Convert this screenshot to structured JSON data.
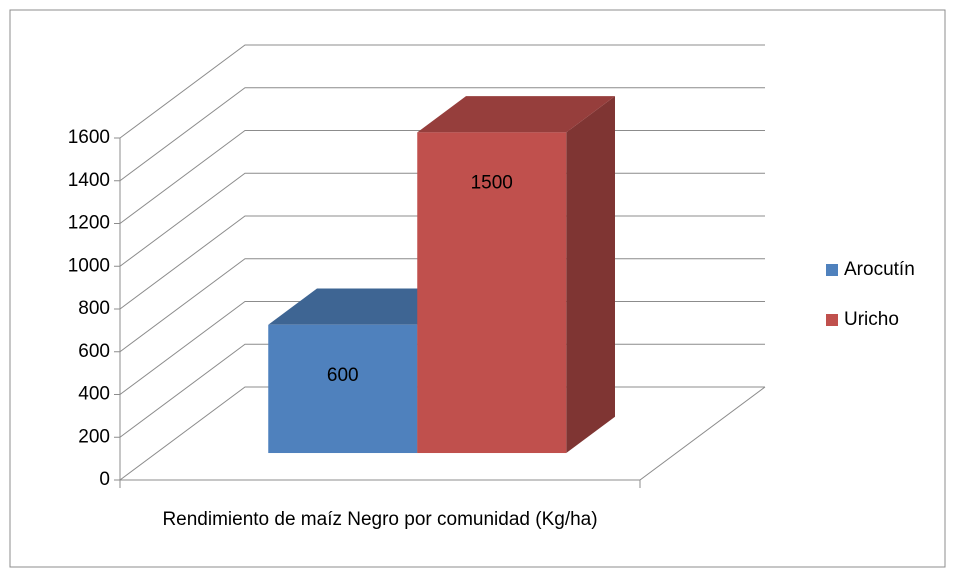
{
  "chart_data": {
    "type": "bar3d",
    "categories": [
      "Rendimiento de maíz Negro por comunidad (Kg/ha)"
    ],
    "series": [
      {
        "name": "Arocutín",
        "color": "#4f81bd",
        "values": [
          600
        ]
      },
      {
        "name": "Uricho",
        "color": "#c0504d",
        "values": [
          1500
        ]
      }
    ],
    "ylim": [
      0,
      1600
    ],
    "yticks": [
      0,
      200,
      400,
      600,
      800,
      1000,
      1200,
      1400,
      1600
    ],
    "grid": true,
    "legend": "right"
  }
}
